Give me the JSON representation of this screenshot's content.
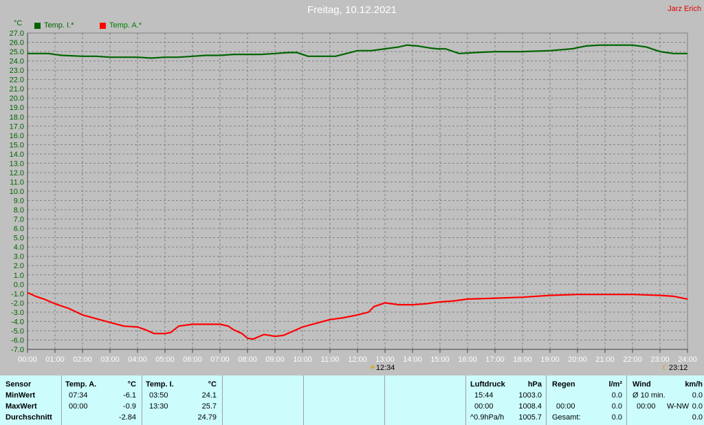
{
  "title": "Freitag, 10.12.2021",
  "author": "Jarz Erich",
  "chart_data": {
    "type": "line",
    "ylabel": "°C",
    "ylim": [
      -7,
      27
    ],
    "y_ticks": [
      "27.0",
      "26.0",
      "25.0",
      "24.0",
      "23.0",
      "22.0",
      "21.0",
      "20.0",
      "19.0",
      "18.0",
      "17.0",
      "16.0",
      "15.0",
      "14.0",
      "13.0",
      "12.0",
      "11.0",
      "10.0",
      "9.0",
      "8.0",
      "7.0",
      "6.0",
      "5.0",
      "4.0",
      "3.0",
      "2.0",
      "1.0",
      "0.0",
      "-1.0",
      "-2.0",
      "-3.0",
      "-4.0",
      "-5.0",
      "-6.0",
      "-7.0"
    ],
    "x_ticks": [
      "00:00",
      "01:00",
      "02:00",
      "03:00",
      "04:00",
      "05:00",
      "06:00",
      "07:00",
      "08:00",
      "09:00",
      "10:00",
      "11:00",
      "12:00",
      "13:00",
      "14:00",
      "15:00",
      "16:00",
      "17:00",
      "18:00",
      "19:00",
      "20:00",
      "21:00",
      "22:00",
      "23:00",
      "24:00"
    ],
    "xlim": [
      0,
      24
    ],
    "grid": true,
    "legend_position": "top-left",
    "series": [
      {
        "name": "Temp. I.*",
        "color": "#006400",
        "x": [
          0,
          0.75,
          1.25,
          2,
          2.5,
          3,
          3.5,
          4,
          4.5,
          5,
          5.5,
          6,
          6.5,
          7,
          7.5,
          8,
          8.5,
          9,
          9.5,
          9.8,
          10.2,
          10.7,
          11.2,
          11.6,
          12,
          12.5,
          13,
          13.5,
          13.8,
          14.2,
          14.6,
          14.9,
          15.2,
          15.7,
          16.3,
          17,
          18,
          19,
          19.8,
          20.3,
          20.8,
          21.2,
          22,
          22.5,
          23,
          23.5,
          24
        ],
        "y": [
          24.8,
          24.8,
          24.6,
          24.5,
          24.5,
          24.4,
          24.4,
          24.4,
          24.3,
          24.4,
          24.4,
          24.5,
          24.6,
          24.6,
          24.7,
          24.7,
          24.7,
          24.8,
          24.9,
          24.9,
          24.5,
          24.5,
          24.5,
          24.8,
          25.1,
          25.1,
          25.3,
          25.5,
          25.7,
          25.6,
          25.4,
          25.3,
          25.3,
          24.8,
          24.9,
          25.0,
          25.0,
          25.1,
          25.3,
          25.6,
          25.7,
          25.7,
          25.7,
          25.5,
          25.0,
          24.8,
          24.8
        ]
      },
      {
        "name": "Temp. A.*",
        "color": "#ff0000",
        "x": [
          0,
          0.3,
          0.6,
          1,
          1.5,
          2,
          2.5,
          3,
          3.5,
          4,
          4.3,
          4.6,
          4.8,
          5,
          5.2,
          5.5,
          6,
          6.5,
          7,
          7.3,
          7.5,
          7.8,
          8,
          8.2,
          8.6,
          8.8,
          9,
          9.3,
          9.7,
          10,
          10.5,
          11,
          11.5,
          12,
          12.4,
          12.6,
          13,
          13.5,
          14,
          14.5,
          15,
          15.5,
          16,
          17,
          18,
          19,
          20,
          21,
          22,
          23,
          23.5,
          24
        ],
        "y": [
          -0.9,
          -1.3,
          -1.6,
          -2.1,
          -2.6,
          -3.3,
          -3.7,
          -4.1,
          -4.5,
          -4.6,
          -4.9,
          -5.3,
          -5.3,
          -5.3,
          -5.2,
          -4.5,
          -4.3,
          -4.3,
          -4.3,
          -4.5,
          -4.9,
          -5.3,
          -5.8,
          -5.9,
          -5.4,
          -5.5,
          -5.6,
          -5.5,
          -5.0,
          -4.6,
          -4.2,
          -3.8,
          -3.6,
          -3.3,
          -3.0,
          -2.4,
          -2.0,
          -2.2,
          -2.2,
          -2.1,
          -1.9,
          -1.8,
          -1.6,
          -1.5,
          -1.4,
          -1.2,
          -1.1,
          -1.1,
          -1.1,
          -1.2,
          -1.3,
          -1.6
        ]
      }
    ]
  },
  "markers": [
    {
      "time": "12:34",
      "glyph": "☀"
    },
    {
      "time": "23:12",
      "glyph": "☾"
    }
  ],
  "stats": {
    "sensor": {
      "header": "Sensor",
      "min": "MinWert",
      "max": "MaxWert",
      "avg": "Durchschnitt"
    },
    "temp_a": {
      "header": "Temp. A.",
      "unit": "°C",
      "min_time": "07:34",
      "min_val": "-6.1",
      "max_time": "00:00",
      "max_val": "-0.9",
      "avg": "-2.84"
    },
    "temp_i": {
      "header": "Temp. I.",
      "unit": "°C",
      "min_time": "03:50",
      "min_val": "24.1",
      "max_time": "13:30",
      "max_val": "25.7",
      "avg": "24.79"
    },
    "pressure": {
      "header": "Luftdruck",
      "unit": "hPa",
      "min_time": "15:44",
      "min_val": "1003.0",
      "max_time": "00:00",
      "max_val": "1008.4",
      "trend": "^0.9hPa/h",
      "current": "1005.7"
    },
    "rain": {
      "header": "Regen",
      "unit": "l/m²",
      "max_time": "00:00",
      "max_val": "0.0",
      "total_label": "Gesamt:",
      "total": "0.0",
      "min_val": "0.0"
    },
    "wind": {
      "header": "Wind",
      "unit": "km/h",
      "avg_label": "Ø 10 min.",
      "avg_val": "0.0",
      "max_time": "00:00",
      "dir": "W-NW",
      "max_val": "0.0",
      "last": "0.0"
    }
  }
}
